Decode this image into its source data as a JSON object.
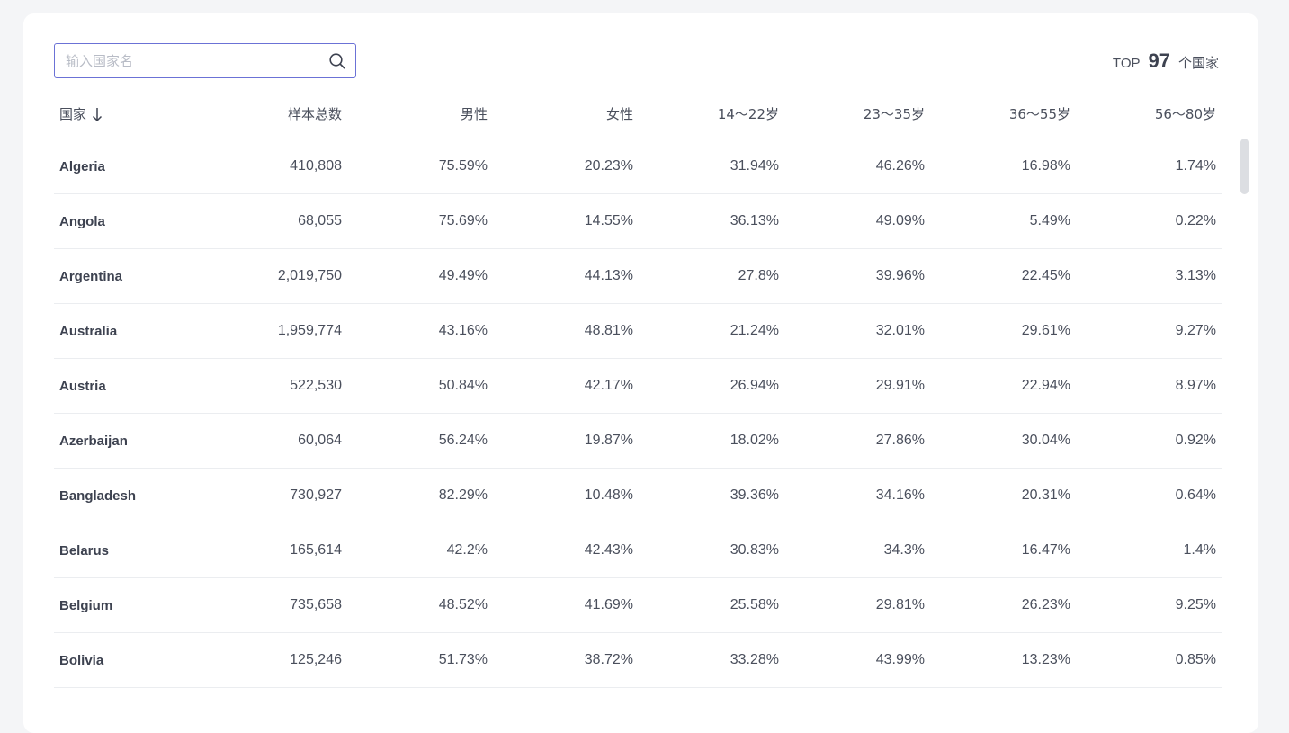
{
  "search": {
    "placeholder": "输入国家名",
    "value": ""
  },
  "summary": {
    "prefix": "TOP",
    "count": "97",
    "suffix": "个国家"
  },
  "table": {
    "headers": [
      "国家",
      "样本总数",
      "男性",
      "女性",
      "14～22岁",
      "23～35岁",
      "36～55岁",
      "56～80岁"
    ],
    "rows": [
      [
        "Algeria",
        "410,808",
        "75.59%",
        "20.23%",
        "31.94%",
        "46.26%",
        "16.98%",
        "1.74%"
      ],
      [
        "Angola",
        "68,055",
        "75.69%",
        "14.55%",
        "36.13%",
        "49.09%",
        "5.49%",
        "0.22%"
      ],
      [
        "Argentina",
        "2,019,750",
        "49.49%",
        "44.13%",
        "27.8%",
        "39.96%",
        "22.45%",
        "3.13%"
      ],
      [
        "Australia",
        "1,959,774",
        "43.16%",
        "48.81%",
        "21.24%",
        "32.01%",
        "29.61%",
        "9.27%"
      ],
      [
        "Austria",
        "522,530",
        "50.84%",
        "42.17%",
        "26.94%",
        "29.91%",
        "22.94%",
        "8.97%"
      ],
      [
        "Azerbaijan",
        "60,064",
        "56.24%",
        "19.87%",
        "18.02%",
        "27.86%",
        "30.04%",
        "0.92%"
      ],
      [
        "Bangladesh",
        "730,927",
        "82.29%",
        "10.48%",
        "39.36%",
        "34.16%",
        "20.31%",
        "0.64%"
      ],
      [
        "Belarus",
        "165,614",
        "42.2%",
        "42.43%",
        "30.83%",
        "34.3%",
        "16.47%",
        "1.4%"
      ],
      [
        "Belgium",
        "735,658",
        "48.52%",
        "41.69%",
        "25.58%",
        "29.81%",
        "26.23%",
        "9.25%"
      ],
      [
        "Bolivia",
        "125,246",
        "51.73%",
        "38.72%",
        "33.28%",
        "43.99%",
        "13.23%",
        "0.85%"
      ]
    ]
  },
  "icons": {
    "search": "search-icon",
    "sort": "arrow-down-icon"
  },
  "colors": {
    "input_border": "#6b72d6",
    "text": "#4a4f5c",
    "background": "#f4f5f7"
  }
}
